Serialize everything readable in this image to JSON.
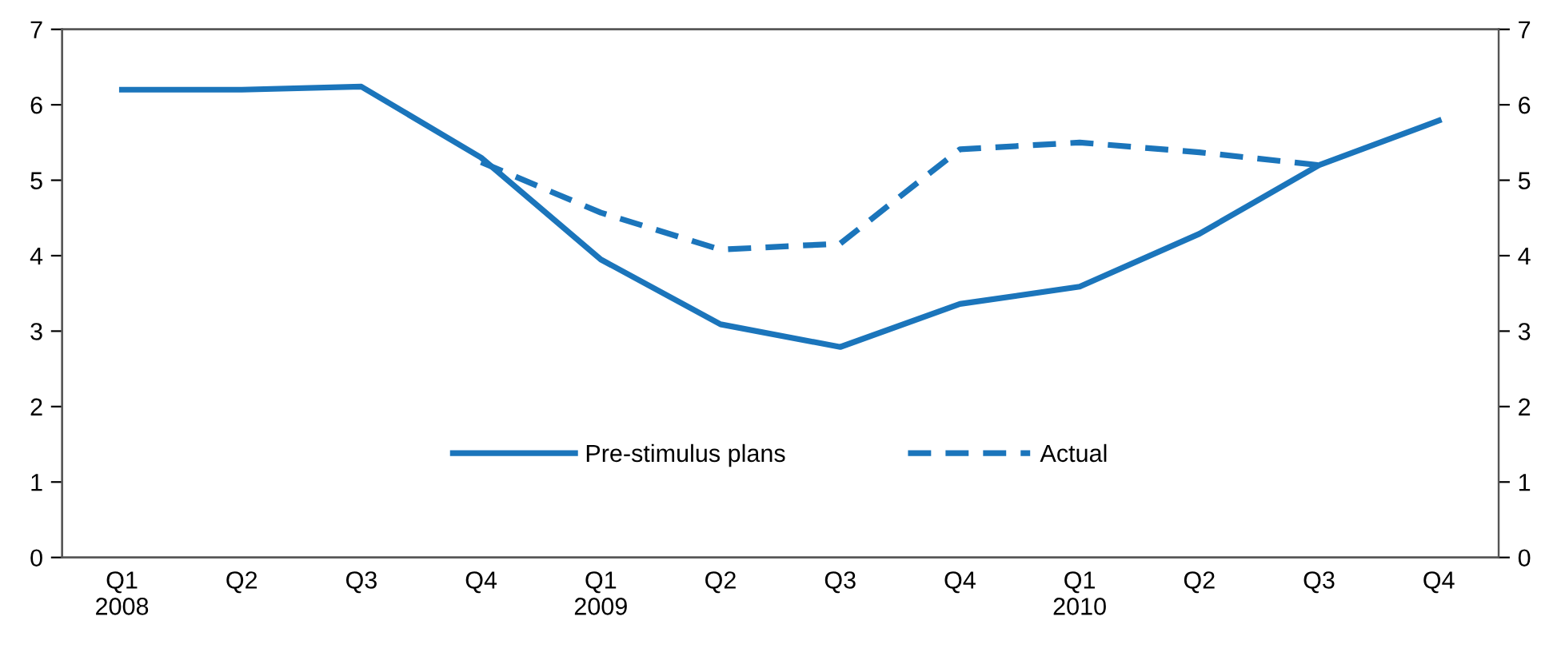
{
  "chart_data": {
    "type": "line",
    "categories": [
      "Q1\n2008",
      "Q2",
      "Q3",
      "Q4",
      "Q1\n2009",
      "Q2",
      "Q3",
      "Q4",
      "Q1\n2010",
      "Q2",
      "Q3",
      "Q4"
    ],
    "series": [
      {
        "name": "Pre-stimulus plans",
        "color": "#1b75bb",
        "line_style": "solid",
        "values": [
          6.2,
          6.2,
          6.24,
          5.3,
          3.95,
          3.09,
          2.79,
          3.36,
          3.59,
          4.29,
          5.2,
          5.79
        ]
      },
      {
        "name": "Actual",
        "color": "#1b75bb",
        "line_style": "dashed",
        "values": [
          null,
          null,
          null,
          5.24,
          4.57,
          4.08,
          4.16,
          5.41,
          5.5,
          5.37,
          5.2,
          null
        ]
      }
    ],
    "ylim": [
      0,
      7
    ],
    "yticks": [
      0,
      1,
      2,
      3,
      4,
      5,
      6,
      7
    ],
    "y2lim": [
      0,
      7
    ],
    "y2ticks": [
      0,
      1,
      2,
      3,
      4,
      5,
      6,
      7
    ],
    "grid": false,
    "legend": "lower center",
    "marker": "none"
  }
}
